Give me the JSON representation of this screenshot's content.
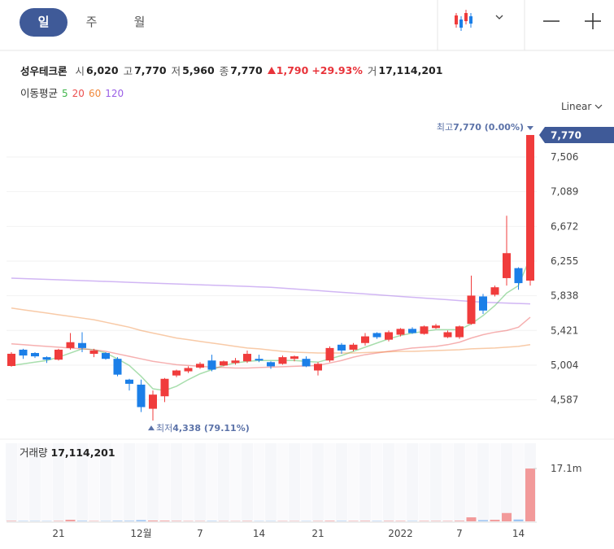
{
  "header": {
    "tabs": [
      "일",
      "주",
      "월"
    ],
    "selected_tab": 0,
    "stock_name": "성우테크론",
    "quote": [
      {
        "label": "시",
        "value": "6,020"
      },
      {
        "label": "고",
        "value": "7,770"
      },
      {
        "label": "저",
        "value": "5,960"
      },
      {
        "label": "종",
        "value": "7,770"
      }
    ],
    "change": "1,790",
    "change_rate": "+29.93%",
    "volume_label": "거",
    "volume": "17,114,201"
  },
  "chart_data": {
    "type": "candlestick",
    "categories": [
      null,
      null,
      null,
      null,
      "21",
      null,
      null,
      null,
      null,
      null,
      null,
      "12월",
      null,
      null,
      null,
      null,
      "7",
      null,
      null,
      null,
      null,
      "14",
      null,
      null,
      null,
      null,
      "21",
      null,
      null,
      null,
      null,
      null,
      null,
      "2022",
      null,
      null,
      null,
      null,
      "7",
      null,
      null,
      null,
      null,
      "14",
      null
    ],
    "open": [
      4994,
      5190,
      5150,
      5100,
      5070,
      5210,
      5270,
      5140,
      5150,
      5080,
      4830,
      4770,
      4480,
      4630,
      4880,
      4930,
      4975,
      5060,
      5000,
      5030,
      5050,
      5080,
      5040,
      5020,
      5080,
      5080,
      4940,
      5060,
      5250,
      5190,
      5270,
      5390,
      5310,
      5370,
      5440,
      5380,
      5450,
      5340,
      5340,
      5500,
      5830,
      5850,
      6050,
      6170,
      6020
    ],
    "high": [
      5160,
      5200,
      5160,
      5110,
      5200,
      5390,
      5400,
      5200,
      5160,
      5100,
      4840,
      4830,
      4700,
      4850,
      4950,
      4990,
      5040,
      5130,
      5060,
      5090,
      5180,
      5130,
      5050,
      5120,
      5120,
      5110,
      5040,
      5230,
      5270,
      5270,
      5390,
      5400,
      5420,
      5450,
      5460,
      5480,
      5500,
      5420,
      5480,
      6080,
      5860,
      5960,
      6800,
      6180,
      7770
    ],
    "low": [
      4985,
      5080,
      5090,
      5030,
      5060,
      5190,
      5160,
      5100,
      5070,
      4870,
      4700,
      4440,
      4338,
      4560,
      4860,
      4910,
      4960,
      4930,
      4990,
      5010,
      5030,
      5040,
      4960,
      5010,
      5050,
      4980,
      4880,
      5040,
      5140,
      5170,
      5240,
      5320,
      5290,
      5350,
      5380,
      5370,
      5440,
      5330,
      5320,
      5490,
      5620,
      5830,
      5960,
      5910,
      5960
    ],
    "close": [
      5141,
      5120,
      5110,
      5070,
      5190,
      5280,
      5210,
      5180,
      5080,
      4890,
      4780,
      4500,
      4650,
      4840,
      4940,
      4970,
      5020,
      4950,
      5050,
      5060,
      5140,
      5060,
      4990,
      5100,
      5110,
      4990,
      5020,
      5210,
      5180,
      5250,
      5350,
      5340,
      5400,
      5440,
      5390,
      5470,
      5480,
      5400,
      5470,
      5840,
      5660,
      5940,
      6350,
      5990,
      7770
    ],
    "up_color": "#f03c3c",
    "down_color": "#1b7fe8",
    "ylim": [
      4212,
      7975
    ],
    "yticks": [
      {
        "value": 4587,
        "label": "4,587"
      },
      {
        "value": 5004,
        "label": "5,004"
      },
      {
        "value": 5421,
        "label": "5,421"
      },
      {
        "value": 5838,
        "label": "5,838"
      },
      {
        "value": 6255,
        "label": "6,255"
      },
      {
        "value": 6672,
        "label": "6,672"
      },
      {
        "value": 7089,
        "label": "7,089"
      },
      {
        "value": 7506,
        "label": "7,506"
      }
    ],
    "grid": true,
    "log_scale": false,
    "scale_label": "Linear",
    "ma_title": "이동평균",
    "ma_series": [
      {
        "name": "5",
        "color": "#3fb54a",
        "values": [
          5000,
          5020,
          5040,
          5060,
          5100,
          5150,
          5200,
          5190,
          5150,
          5080,
          5000,
          4870,
          4720,
          4700,
          4750,
          4830,
          4900,
          4950,
          5000,
          5030,
          5050,
          5060,
          5060,
          5060,
          5060,
          5050,
          5040,
          5080,
          5120,
          5170,
          5220,
          5270,
          5320,
          5360,
          5390,
          5410,
          5430,
          5430,
          5430,
          5500,
          5600,
          5720,
          5870,
          5960,
          6300
        ]
      },
      {
        "name": "20",
        "color": "#ec4f4f",
        "values": [
          5260,
          5250,
          5240,
          5230,
          5220,
          5210,
          5200,
          5190,
          5170,
          5140,
          5110,
          5080,
          5050,
          5030,
          5010,
          5000,
          4990,
          4980,
          4975,
          4970,
          4970,
          4975,
          4980,
          4985,
          4990,
          4995,
          5000,
          5030,
          5060,
          5100,
          5130,
          5150,
          5170,
          5190,
          5210,
          5220,
          5230,
          5250,
          5280,
          5330,
          5370,
          5400,
          5420,
          5460,
          5580
        ]
      },
      {
        "name": "60",
        "color": "#f0893c",
        "values": [
          5690,
          5670,
          5650,
          5630,
          5610,
          5590,
          5570,
          5550,
          5520,
          5490,
          5460,
          5420,
          5390,
          5360,
          5330,
          5310,
          5290,
          5270,
          5250,
          5230,
          5210,
          5200,
          5185,
          5170,
          5160,
          5155,
          5150,
          5150,
          5150,
          5150,
          5155,
          5160,
          5165,
          5170,
          5170,
          5175,
          5180,
          5185,
          5190,
          5200,
          5205,
          5210,
          5220,
          5230,
          5250
        ]
      },
      {
        "name": "120",
        "color": "#9a5ee6",
        "values": [
          6050,
          6045,
          6040,
          6035,
          6030,
          6025,
          6020,
          6015,
          6010,
          6005,
          6000,
          5995,
          5990,
          5985,
          5980,
          5975,
          5970,
          5965,
          5960,
          5955,
          5950,
          5945,
          5940,
          5930,
          5920,
          5910,
          5900,
          5890,
          5880,
          5870,
          5860,
          5850,
          5840,
          5830,
          5820,
          5810,
          5800,
          5790,
          5780,
          5770,
          5760,
          5755,
          5750,
          5745,
          5740
        ]
      }
    ],
    "high_annotation": {
      "label": "최고",
      "text": "7,770 (0.00%)"
    },
    "low_annotation": {
      "label": "최저",
      "text": "4,338 (79.11%)"
    },
    "price_tag": {
      "value": 7770,
      "label": "7,770"
    },
    "volume": {
      "title": "거래량",
      "latest": "17,114,201",
      "values": [
        150000,
        120000,
        110000,
        100000,
        130000,
        500000,
        180000,
        120000,
        110000,
        200000,
        180000,
        400000,
        260000,
        220000,
        150000,
        120000,
        110000,
        140000,
        100000,
        100000,
        130000,
        100000,
        100000,
        110000,
        100000,
        100000,
        120000,
        180000,
        140000,
        130000,
        160000,
        130000,
        150000,
        140000,
        120000,
        140000,
        130000,
        130000,
        200000,
        1300000,
        400000,
        500000,
        2700000,
        600000,
        17114201
      ],
      "ylim": [
        0,
        25300000
      ],
      "yticks": [
        {
          "value": 17100000,
          "label": "17.1m"
        }
      ]
    }
  }
}
